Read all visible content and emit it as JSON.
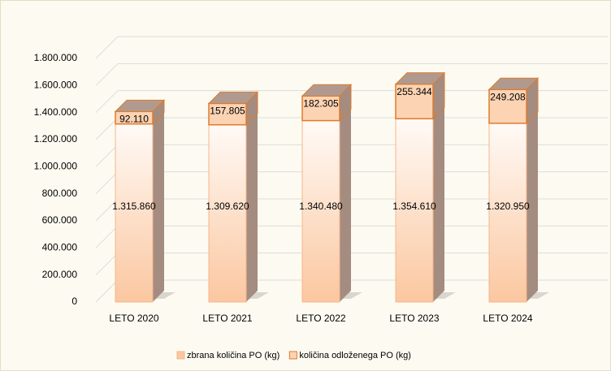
{
  "chart_data": {
    "type": "bar3d_stacked",
    "categories": [
      "LETO 2020",
      "LETO 2021",
      "LETO 2022",
      "LETO 2023",
      "LETO 2024"
    ],
    "series": [
      {
        "name": "zbrana količina PO (kg)",
        "color": "#fbc7a0",
        "values": [
          1315860,
          1309620,
          1340480,
          1354610,
          1320950
        ],
        "value_labels": [
          "1.315.860",
          "1.309.620",
          "1.340.480",
          "1.354.610",
          "1.320.950"
        ]
      },
      {
        "name": "količina odloženega PO (kg)",
        "color": "#fcd3b3",
        "values": [
          92110,
          157805,
          182305,
          255344,
          249208
        ],
        "value_labels": [
          "92.110",
          "157.805",
          "182.305",
          "255.344",
          "249.208"
        ]
      }
    ],
    "ylim": [
      0,
      1800000
    ],
    "yticks": [
      0,
      {
        "value": 200000,
        "label": "200.000"
      },
      {
        "value": 400000,
        "label": "400.000"
      },
      {
        "value": 600000,
        "label": "600.000"
      },
      {
        "value": 800000,
        "label": "800.000"
      },
      {
        "value": 1000000,
        "label": "1.000.000"
      },
      {
        "value": 1200000,
        "label": "1.200.000"
      },
      {
        "value": 1400000,
        "label": "1.400.000"
      },
      {
        "value": 1600000,
        "label": "1.600.000"
      },
      {
        "value": 1800000,
        "label": "1.800.000"
      }
    ],
    "grid": true,
    "legend": "bottom"
  }
}
